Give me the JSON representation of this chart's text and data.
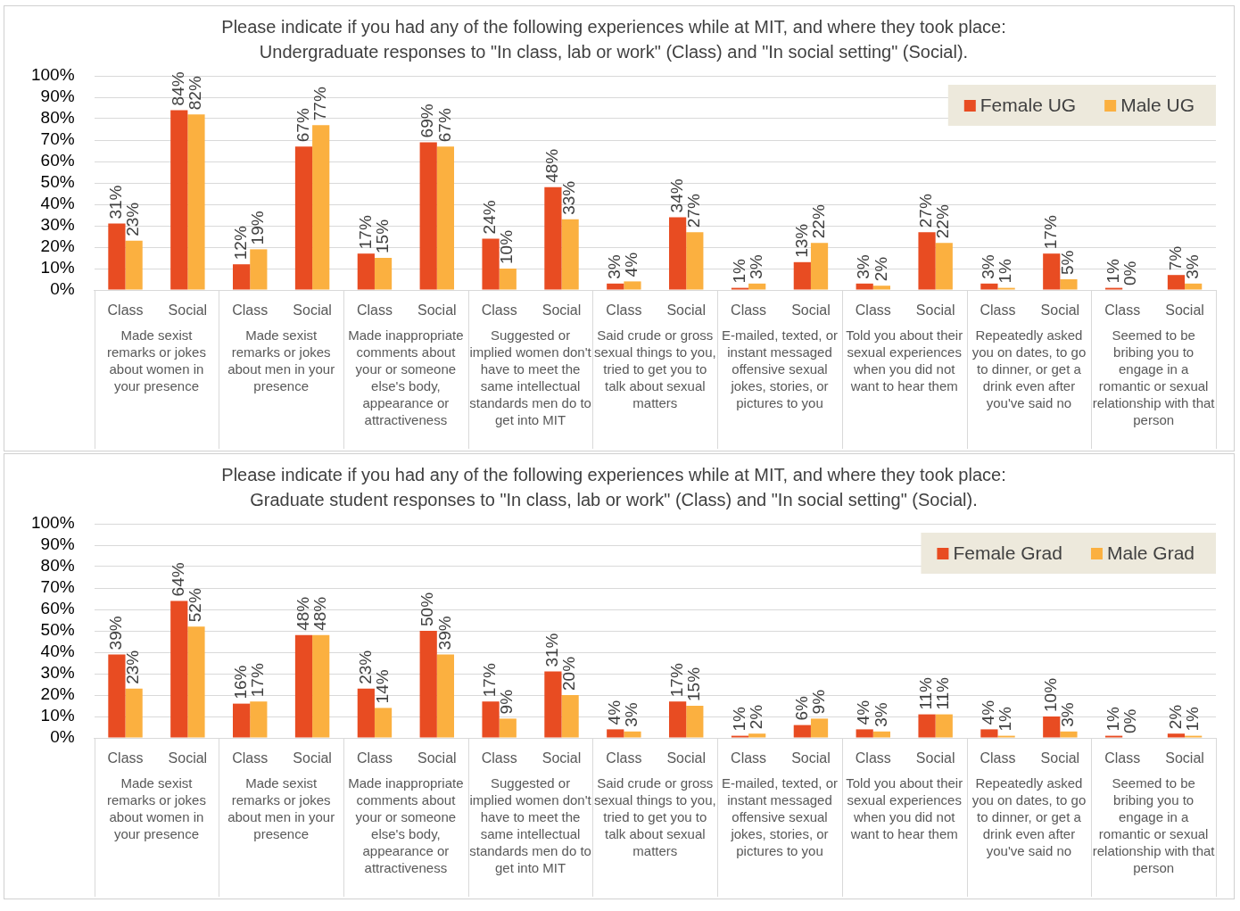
{
  "chart_data": [
    {
      "type": "bar",
      "title": "Please indicate if you had any of the following experiences while at MIT, and where they took place:",
      "subtitle": "Undergraduate responses to \"In class, lab or work\" (Class) and \"In social setting\" (Social).",
      "categories": [
        "Class",
        "Social",
        "Class",
        "Social",
        "Class",
        "Social",
        "Class",
        "Social",
        "Class",
        "Social",
        "Class",
        "Social",
        "Class",
        "Social",
        "Class",
        "Social",
        "Class",
        "Social"
      ],
      "series": [
        {
          "name": "Female UG",
          "color": "#e84c22",
          "values": [
            31,
            84,
            12,
            67,
            17,
            69,
            24,
            48,
            3,
            34,
            1,
            13,
            3,
            27,
            3,
            17,
            1,
            7
          ],
          "value_labels": [
            "31%",
            "84%",
            "12%",
            "67%",
            "17%",
            "69%",
            "24%",
            "48%",
            "3%",
            "34%",
            "1%",
            "13%",
            "3%",
            "27%",
            "3%",
            "17%",
            "1%",
            "7%"
          ]
        },
        {
          "name": "Male UG",
          "color": "#fbb040",
          "values": [
            23,
            82,
            19,
            77,
            15,
            67,
            10,
            33,
            4,
            27,
            3,
            22,
            2,
            22,
            1,
            5,
            0,
            3
          ],
          "value_labels": [
            "23%",
            "82%",
            "19%",
            "77%",
            "15%",
            "67%",
            "10%",
            "33%",
            "4%",
            "27%",
            "3%",
            "22%",
            "2%",
            "22%",
            "1%",
            "5%",
            "0%",
            "3%"
          ]
        }
      ],
      "ylim": [
        0,
        100
      ],
      "yticks": [
        {
          "value": 0,
          "label": "0%"
        },
        {
          "value": 10,
          "label": "10%"
        },
        {
          "value": 20,
          "label": "20%"
        },
        {
          "value": 30,
          "label": "30%"
        },
        {
          "value": 40,
          "label": "40%"
        },
        {
          "value": 50,
          "label": "50%"
        },
        {
          "value": 60,
          "label": "60%"
        },
        {
          "value": 70,
          "label": "70%"
        },
        {
          "value": 80,
          "label": "80%"
        },
        {
          "value": 90,
          "label": "90%"
        },
        {
          "value": 100,
          "label": "100%"
        }
      ],
      "grid": "y",
      "legend": "top right",
      "annotations": [
        "Made sexist remarks or jokes about women in your presence",
        "Made sexist remarks or jokes about men in your presence",
        "Made inappropriate comments about your or someone else's body, appearance or attractiveness",
        "Suggested or implied women don't have to meet the same intellectual standards men do to get into MIT",
        "Said crude or gross sexual things to you, tried to get you to talk about sexual matters",
        "E-mailed, texted, or instant messaged offensive sexual jokes, stories, or pictures to you",
        "Told you about their sexual experiences when you did not want to hear them",
        "Repeatedly asked you on dates, to go to dinner, or get a drink even after you've said no",
        "Seemed to be bribing you to engage in a romantic or sexual relationship with that person"
      ]
    },
    {
      "type": "bar",
      "title": "Please indicate if you had any of the following experiences while at MIT, and where they took place:",
      "subtitle": "Graduate student responses to \"In class, lab or work\" (Class) and \"In social setting\" (Social).",
      "categories": [
        "Class",
        "Social",
        "Class",
        "Social",
        "Class",
        "Social",
        "Class",
        "Social",
        "Class",
        "Social",
        "Class",
        "Social",
        "Class",
        "Social",
        "Class",
        "Social",
        "Class",
        "Social"
      ],
      "series": [
        {
          "name": "Female Grad",
          "color": "#e84c22",
          "values": [
            39,
            64,
            16,
            48,
            23,
            50,
            17,
            31,
            4,
            17,
            1,
            6,
            4,
            11,
            4,
            10,
            1,
            2
          ],
          "value_labels": [
            "39%",
            "64%",
            "16%",
            "48%",
            "23%",
            "50%",
            "17%",
            "31%",
            "4%",
            "17%",
            "1%",
            "6%",
            "4%",
            "11%",
            "4%",
            "10%",
            "1%",
            "2%"
          ]
        },
        {
          "name": "Male Grad",
          "color": "#fbb040",
          "values": [
            23,
            52,
            17,
            48,
            14,
            39,
            9,
            20,
            3,
            15,
            2,
            9,
            3,
            11,
            1,
            3,
            0,
            1
          ],
          "value_labels": [
            "23%",
            "52%",
            "17%",
            "48%",
            "14%",
            "39%",
            "9%",
            "20%",
            "3%",
            "15%",
            "2%",
            "9%",
            "3%",
            "11%",
            "1%",
            "3%",
            "0%",
            "1%"
          ]
        }
      ],
      "ylim": [
        0,
        100
      ],
      "yticks": [
        {
          "value": 0,
          "label": "0%"
        },
        {
          "value": 10,
          "label": "10%"
        },
        {
          "value": 20,
          "label": "20%"
        },
        {
          "value": 30,
          "label": "30%"
        },
        {
          "value": 40,
          "label": "40%"
        },
        {
          "value": 50,
          "label": "50%"
        },
        {
          "value": 60,
          "label": "60%"
        },
        {
          "value": 70,
          "label": "70%"
        },
        {
          "value": 80,
          "label": "80%"
        },
        {
          "value": 90,
          "label": "90%"
        },
        {
          "value": 100,
          "label": "100%"
        }
      ],
      "grid": "y",
      "legend": "top right",
      "annotations": [
        "Made sexist remarks or jokes about women in your presence",
        "Made sexist remarks or jokes about men in your presence",
        "Made inappropriate comments about your or someone else's body, appearance or attractiveness",
        "Suggested or implied women don't have to meet the same intellectual standards men do to get into MIT",
        "Said crude or gross sexual things to you, tried to get you to talk about sexual matters",
        "E-mailed, texted, or instant messaged offensive sexual jokes, stories, or pictures to you",
        "Told you about their sexual experiences when you did not want to hear them",
        "Repeatedly asked you on dates, to go to dinner, or get a drink even after you've said no",
        "Seemed to be bribing you to engage in a romantic or sexual relationship with that person"
      ]
    }
  ]
}
